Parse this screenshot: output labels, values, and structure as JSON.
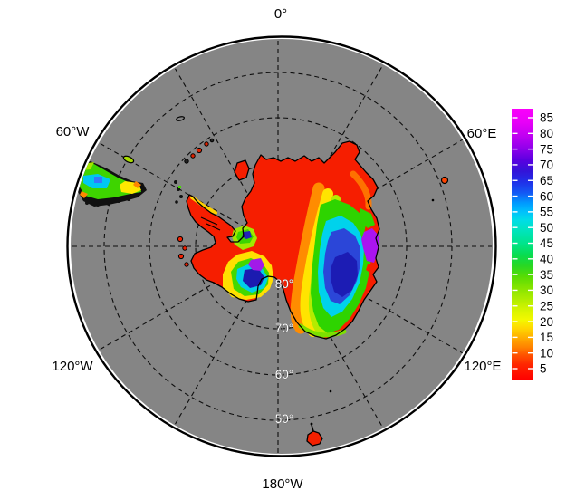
{
  "figure": {
    "type": "south-polar-stereographic-data-map",
    "meridian_labels": {
      "top": "0°",
      "upper_right": "60°E",
      "lower_right": "120°E",
      "bottom": "180°W",
      "lower_left": "120°W",
      "upper_left": "60°W"
    },
    "latitude_ring_labels": [
      "80°",
      "70°",
      "60°",
      "50°"
    ],
    "graticule": {
      "latitude_rings_deg": [
        80,
        70,
        60,
        50
      ],
      "meridian_spacing_deg": 30,
      "style": "dashed-black"
    },
    "colors": {
      "background": "#ffffff",
      "ocean_no_data_gray": "#858585",
      "coastline_black": "#000000",
      "map_edge_black": "#000000"
    }
  },
  "colorbar": {
    "tick_labels": [
      "85",
      "80",
      "75",
      "70",
      "65",
      "60",
      "55",
      "50",
      "45",
      "40",
      "35",
      "30",
      "25",
      "20",
      "15",
      "10",
      "5"
    ],
    "max_label": "85",
    "min_label": "5",
    "tick_step": 5,
    "orientation": "vertical-right",
    "gradient_top_to_bottom": [
      "#fb00fb",
      "#c000f2",
      "#8c00ea",
      "#3413d8",
      "#1458f4",
      "#009cff",
      "#00dce8",
      "#00e4bc",
      "#00e488",
      "#28d824",
      "#58dc04",
      "#acec00",
      "#f4f800",
      "#ffd800",
      "#ff8400",
      "#ff5200",
      "#ff0000"
    ]
  },
  "chart_data": {
    "type": "heatmap",
    "projection": "south polar stereographic, 0° meridian at top",
    "value_range_shown": [
      5,
      85
    ],
    "regions": [
      {
        "name": "antarctic continent and inner ice field",
        "approx_values": "5-10",
        "color": "red"
      },
      {
        "name": "northeast ice edge lobe (0°-30°E)",
        "approx_values": "5-15",
        "color": "red-orange"
      },
      {
        "name": "east antarctic coastal maximum (~30°-90°E)",
        "approx_values": "25-85",
        "color": "green-cyan-blue core with purple maximum at coast"
      },
      {
        "name": "amundsen-bellingshausen patch (~90°-120°W)",
        "approx_values": "15-80",
        "color": "yellow ring, cyan-navy core, small purple spot"
      },
      {
        "name": "ross sea opening (~180°)",
        "approx_values": "no data",
        "color": "gray wedge"
      },
      {
        "name": "south america / scotia blob (upper left)",
        "approx_values": "20-55",
        "color": "green-cyan with yellow edges, black ragged coast"
      },
      {
        "name": "small islands",
        "approx_values": "5-30",
        "color": "black outlined specks, some red/yellow"
      }
    ]
  }
}
